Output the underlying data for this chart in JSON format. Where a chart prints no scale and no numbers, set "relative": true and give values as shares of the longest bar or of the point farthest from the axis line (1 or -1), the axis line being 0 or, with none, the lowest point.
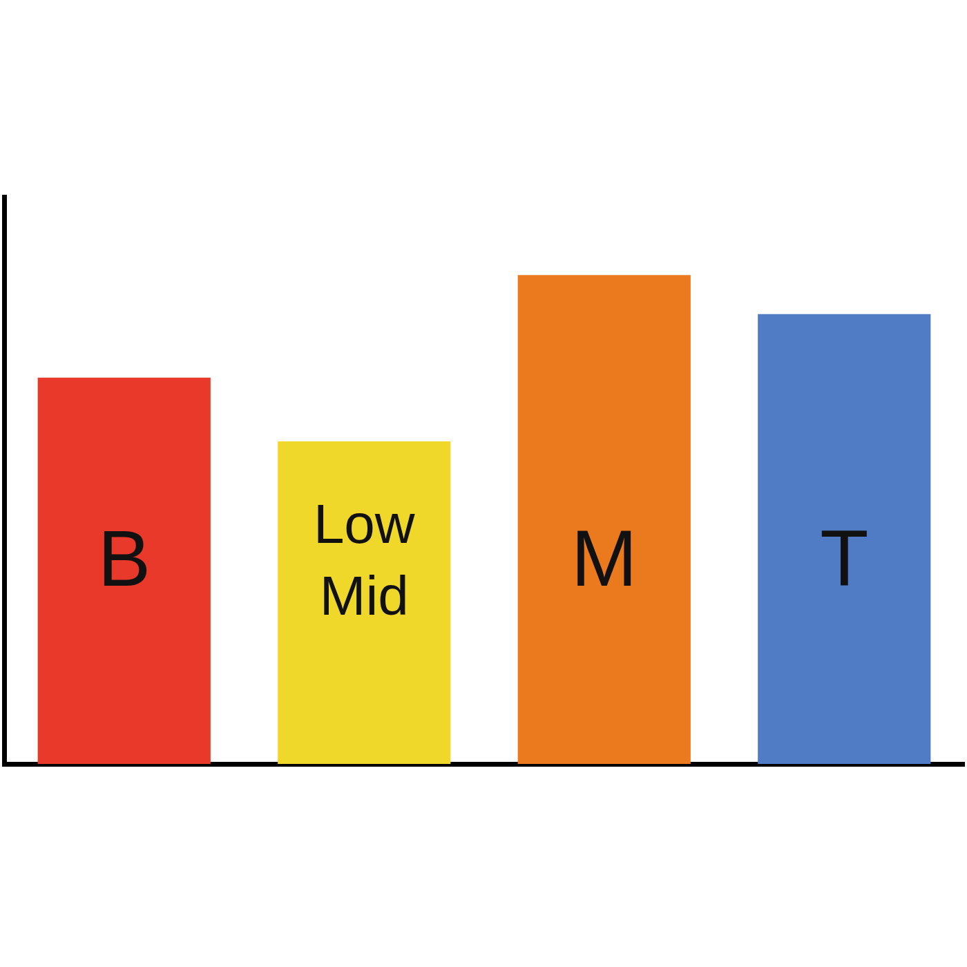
{
  "chart_data": {
    "type": "bar",
    "relative": true,
    "categories": [
      "B",
      "Low Mid",
      "M",
      "T"
    ],
    "values": [
      0.79,
      0.66,
      1,
      0.92
    ],
    "colors": [
      "#e8392a",
      "#f0d82a",
      "#eb7a1e",
      "#4f7cc4"
    ],
    "grid": false,
    "legend": false
  }
}
